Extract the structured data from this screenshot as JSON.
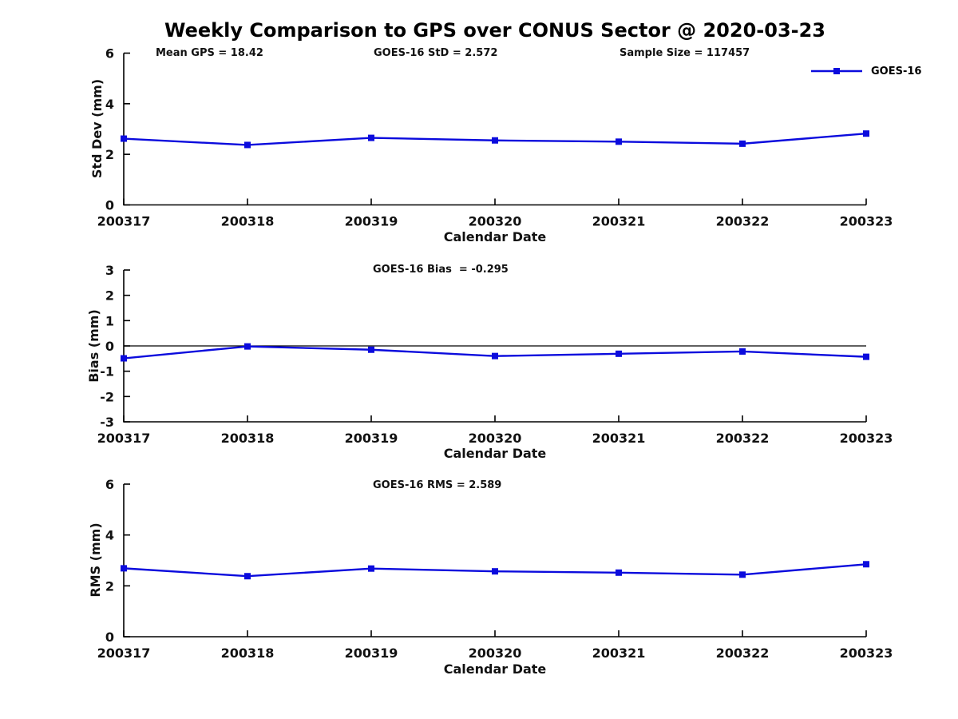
{
  "title": "Weekly Comparison to GPS over CONUS Sector @ 2020-03-23",
  "legend": {
    "label": "GOES-16"
  },
  "colors": {
    "series": "#0b0bdd",
    "axis": "#000000",
    "text": "#111111",
    "background": "#ffffff"
  },
  "chart_data": [
    {
      "type": "line",
      "series_name": "GOES-16",
      "ylabel": "Std Dev (mm)",
      "xlabel": "Calendar Date",
      "ylim": [
        0,
        6
      ],
      "yticks": [
        0,
        2,
        4,
        6
      ],
      "grid": false,
      "legend_position": "upper right",
      "marker": "square",
      "categories": [
        "200317",
        "200318",
        "200319",
        "200320",
        "200321",
        "200322",
        "200323"
      ],
      "values": [
        2.62,
        2.37,
        2.65,
        2.55,
        2.5,
        2.42,
        2.82
      ],
      "annotations": [
        "Mean GPS = 18.42",
        "GOES-16 StD = 2.572",
        "Sample Size = 117457"
      ]
    },
    {
      "type": "line",
      "series_name": "GOES-16",
      "ylabel": "Bias (mm)",
      "xlabel": "Calendar Date",
      "ylim": [
        -3,
        3
      ],
      "yticks": [
        -3,
        -2,
        -1,
        0,
        1,
        2,
        3
      ],
      "grid": false,
      "zero_line": true,
      "marker": "square",
      "categories": [
        "200317",
        "200318",
        "200319",
        "200320",
        "200321",
        "200322",
        "200323"
      ],
      "values": [
        -0.49,
        -0.02,
        -0.15,
        -0.4,
        -0.31,
        -0.22,
        -0.43
      ],
      "annotations": [
        "GOES-16 Bias  = -0.295"
      ]
    },
    {
      "type": "line",
      "series_name": "GOES-16",
      "ylabel": "RMS (mm)",
      "xlabel": "Calendar Date",
      "ylim": [
        0,
        6
      ],
      "yticks": [
        0,
        2,
        4,
        6
      ],
      "grid": false,
      "marker": "square",
      "categories": [
        "200317",
        "200318",
        "200319",
        "200320",
        "200321",
        "200322",
        "200323"
      ],
      "values": [
        2.69,
        2.38,
        2.68,
        2.57,
        2.52,
        2.44,
        2.85
      ],
      "annotations": [
        "GOES-16 RMS = 2.589"
      ]
    }
  ]
}
